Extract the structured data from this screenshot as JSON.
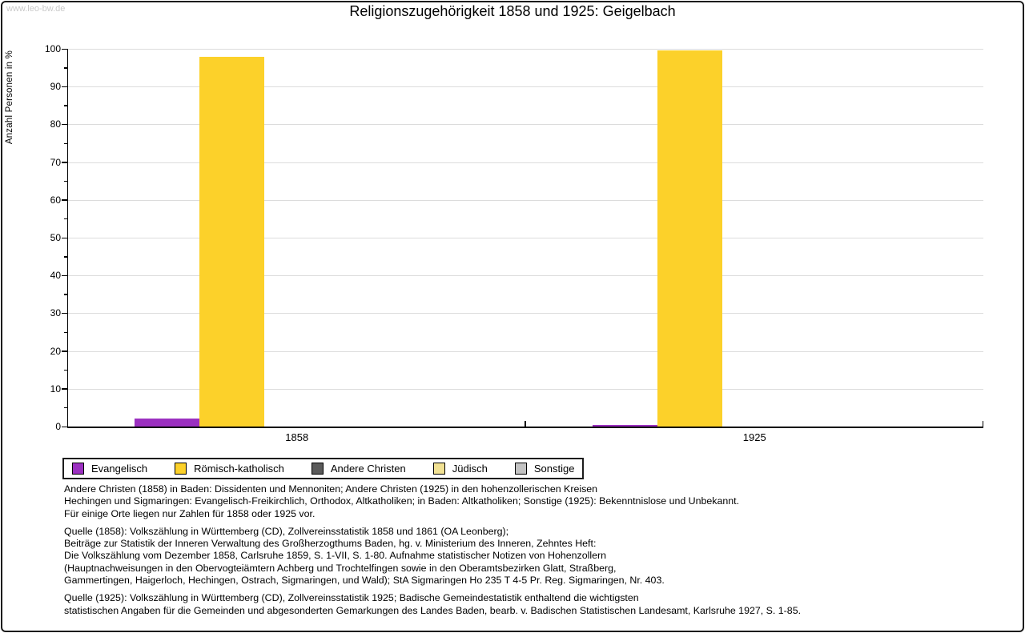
{
  "watermark": "www.leo-bw.de",
  "title": "Religionszugehörigkeit 1858 und 1925: Geigelbach",
  "chart_data": {
    "type": "bar",
    "title": "Religionszugehörigkeit 1858 und 1925: Geigelbach",
    "xlabel": "",
    "ylabel": "Anzahl Personen in %",
    "categories": [
      "1858",
      "1925"
    ],
    "series": [
      {
        "name": "Evangelisch",
        "color": "#9b30c0",
        "values": [
          2.1,
          0.4
        ]
      },
      {
        "name": "Römisch-katholisch",
        "color": "#fcd12a",
        "values": [
          97.9,
          99.6
        ]
      },
      {
        "name": "Andere Christen",
        "color": "#5a5a5a",
        "values": [
          0,
          0
        ]
      },
      {
        "name": "Jüdisch",
        "color": "#f1e193",
        "values": [
          0,
          0
        ]
      },
      {
        "name": "Sonstige",
        "color": "#c3c3c3",
        "values": [
          0,
          0
        ]
      }
    ],
    "ylim": [
      0,
      100
    ],
    "yticks": [
      0,
      10,
      20,
      30,
      40,
      50,
      60,
      70,
      80,
      90,
      100
    ],
    "minor_tick_step": 5,
    "grid": "horizontal",
    "legend_position": "bottom"
  },
  "notes": {
    "p1": "Andere Christen (1858) in Baden: Dissidenten und Mennoniten; Andere Christen (1925) in den hohenzollerischen Kreisen\nHechingen und Sigmaringen: Evangelisch-Freikirchlich, Orthodox, Altkatholiken; in Baden: Altkatholiken; Sonstige (1925): Bekenntnislose und Unbekannt.\nFür einige Orte liegen nur Zahlen für 1858 oder 1925 vor.",
    "p2": "Quelle (1858): Volkszählung in Württemberg (CD), Zollvereinsstatistik 1858 und 1861 (OA Leonberg);\nBeiträge zur Statistik der Inneren Verwaltung des Großherzogthums Baden, hg. v. Ministerium des Inneren, Zehntes Heft:\nDie Volkszählung vom Dezember 1858, Carlsruhe 1859, S. 1-VII, S. 1-80. Aufnahme statistischer Notizen von Hohenzollern\n(Hauptnachweisungen in den Obervogteiämtern Achberg und Trochtelfingen sowie in den Oberamtsbezirken Glatt, Straßberg,\nGammertingen, Haigerloch, Hechingen, Ostrach, Sigmaringen, und Wald); StA Sigmaringen Ho 235 T 4-5 Pr. Reg. Sigmaringen, Nr. 403.",
    "p3": "Quelle (1925): Volkszählung in Württemberg (CD), Zollvereinsstatistik 1925; Badische Gemeindestatistik enthaltend die wichtigsten\nstatistischen Angaben für die Gemeinden und abgesonderten Gemarkungen des Landes Baden, bearb. v. Badischen Statistischen Landesamt, Karlsruhe 1927, S. 1-85."
  }
}
